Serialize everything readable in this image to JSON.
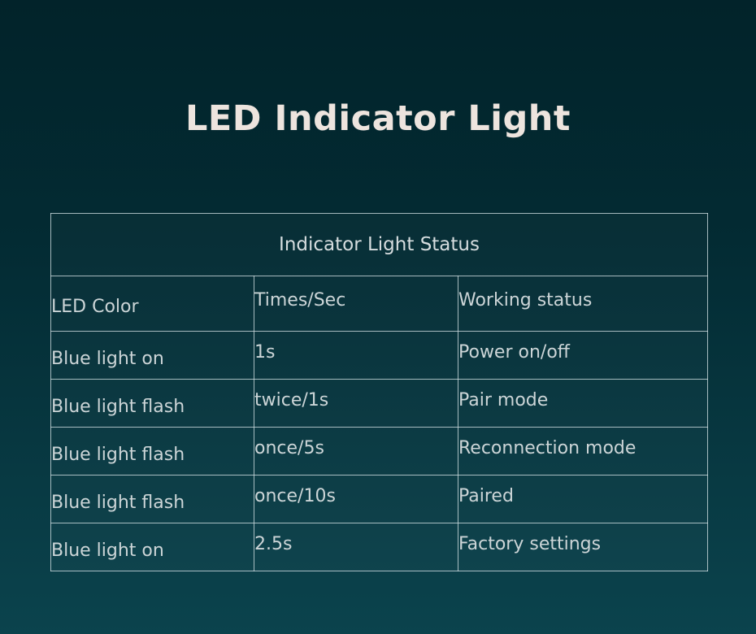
{
  "header": {
    "title": "LED Indicator Light"
  },
  "chart_data": {
    "type": "table",
    "title": "Indicator Light Status",
    "columns": [
      "LED Color",
      "Times/Sec",
      "Working status"
    ],
    "rows": [
      [
        "Blue light on",
        "1s",
        "Power on/off"
      ],
      [
        "Blue light flash",
        "twice/1s",
        "Pair mode"
      ],
      [
        "Blue light flash",
        "once/5s",
        "Reconnection mode"
      ],
      [
        "Blue light flash",
        "once/10s",
        "Paired"
      ],
      [
        "Blue light on",
        "2.5s",
        "Factory settings"
      ]
    ]
  },
  "colors": {
    "background_top": "#02232a",
    "background_bottom": "#0b434d",
    "title_text": "#ede4de",
    "table_text": "#ccd5d7",
    "table_border": "#d3e2e4"
  }
}
